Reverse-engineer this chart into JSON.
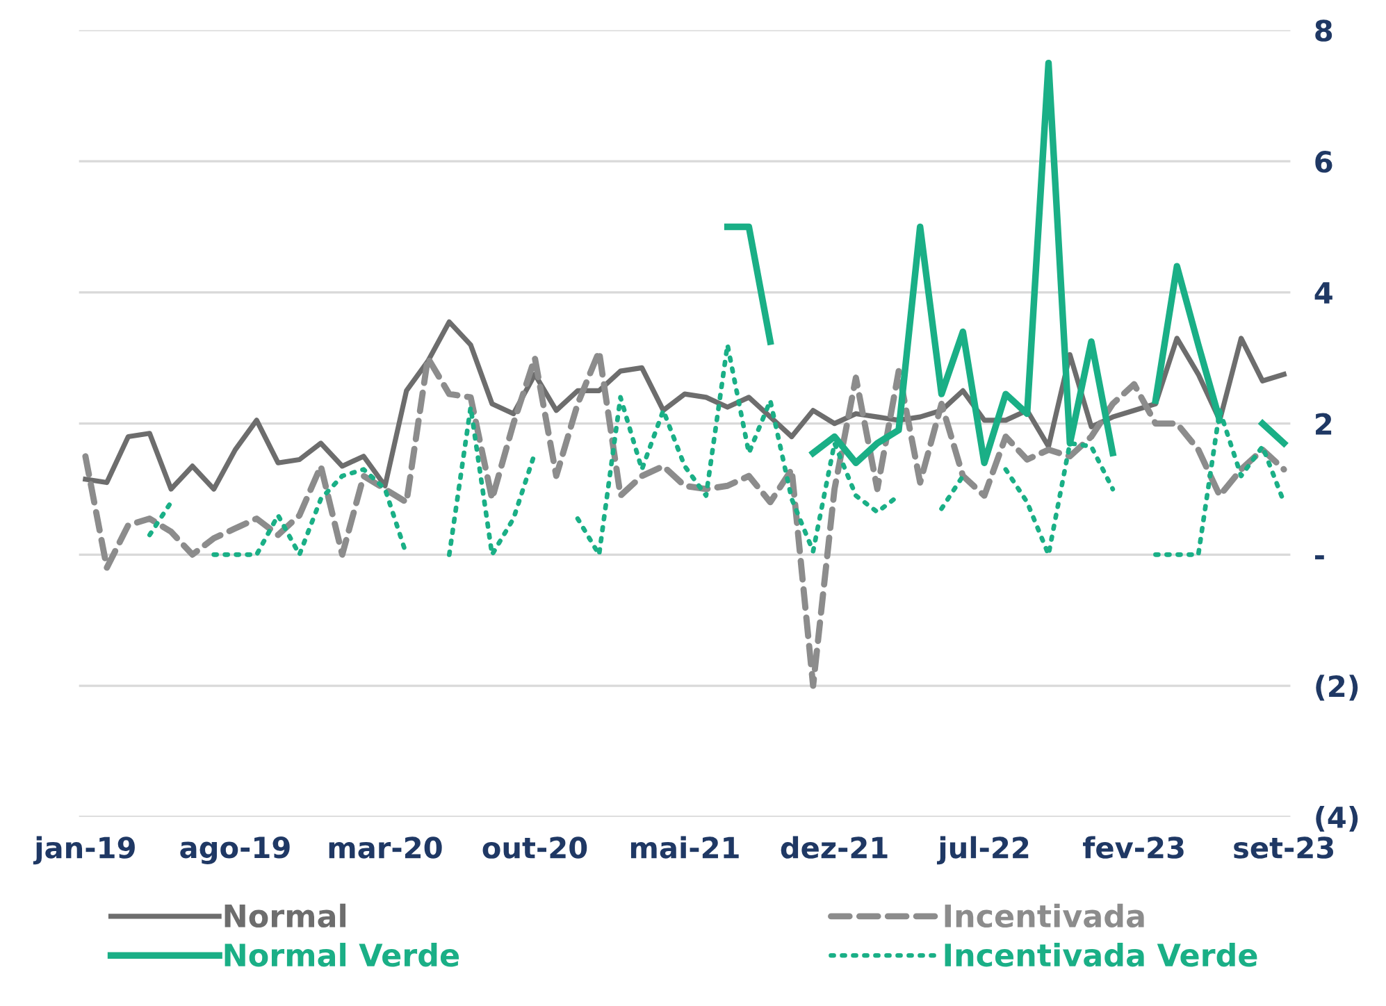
{
  "chart_data": {
    "type": "line",
    "categories": [
      "jan-19",
      null,
      null,
      null,
      null,
      null,
      null,
      "ago-19",
      null,
      null,
      null,
      null,
      null,
      null,
      "mar-20",
      null,
      null,
      null,
      null,
      null,
      null,
      "out-20",
      null,
      null,
      null,
      null,
      null,
      null,
      "mai-21",
      null,
      null,
      null,
      null,
      null,
      null,
      "dez-21",
      null,
      null,
      null,
      null,
      null,
      null,
      "jul-22",
      null,
      null,
      null,
      null,
      null,
      null,
      "fev-23",
      null,
      null,
      null,
      null,
      null,
      null,
      "set-23"
    ],
    "series": [
      {
        "name": "Normal",
        "color": "#6d6d6d",
        "line_style": "solid",
        "values": [
          1.15,
          1.1,
          1.8,
          1.85,
          1.0,
          1.35,
          1.0,
          1.6,
          2.05,
          1.4,
          1.45,
          1.7,
          1.35,
          1.5,
          1.05,
          2.5,
          2.95,
          3.55,
          3.2,
          2.3,
          2.15,
          2.75,
          2.2,
          2.5,
          2.5,
          2.8,
          2.85,
          2.2,
          2.45,
          2.4,
          2.25,
          2.4,
          2.1,
          1.8,
          2.2,
          2.0,
          2.15,
          2.1,
          2.05,
          2.1,
          2.2,
          2.5,
          2.05,
          2.05,
          2.2,
          1.65,
          3.05,
          1.95,
          2.1,
          2.2,
          2.3,
          3.3,
          2.75,
          2.05,
          3.3,
          2.65,
          2.75
        ]
      },
      {
        "name": "Incentivada",
        "color": "#8c8c8c",
        "line_style": "dashed",
        "values": [
          1.5,
          -0.2,
          0.45,
          0.55,
          0.35,
          0.0,
          0.25,
          0.4,
          0.55,
          0.3,
          0.6,
          1.35,
          0.0,
          1.2,
          1.0,
          0.8,
          3.0,
          2.45,
          2.4,
          0.85,
          2.0,
          3.0,
          1.2,
          2.3,
          3.1,
          0.9,
          1.2,
          1.35,
          1.05,
          1.0,
          1.05,
          1.2,
          0.8,
          1.3,
          -2.0,
          1.0,
          2.7,
          1.0,
          2.8,
          1.1,
          2.3,
          1.2,
          0.9,
          1.8,
          1.45,
          1.6,
          1.5,
          1.8,
          2.3,
          2.6,
          2.0,
          2.0,
          1.6,
          0.9,
          1.3,
          1.6,
          1.3
        ]
      },
      {
        "name": "Normal Verde",
        "color": "#1aaf86",
        "line_style": "solid",
        "values": [
          null,
          null,
          null,
          null,
          null,
          null,
          null,
          null,
          null,
          null,
          null,
          null,
          null,
          null,
          null,
          null,
          null,
          null,
          null,
          null,
          null,
          null,
          null,
          null,
          null,
          null,
          null,
          null,
          null,
          null,
          5.0,
          5.0,
          3.25,
          null,
          1.55,
          1.8,
          1.4,
          1.7,
          1.9,
          5.0,
          2.45,
          3.4,
          1.4,
          2.45,
          2.15,
          7.5,
          1.7,
          3.25,
          1.55,
          null,
          2.35,
          4.4,
          3.2,
          2.05,
          null,
          2.0,
          1.7
        ]
      },
      {
        "name": "Incentivada Verde",
        "color": "#1aaf86",
        "line_style": "dotted",
        "values": [
          null,
          null,
          null,
          0.3,
          0.8,
          null,
          0.0,
          0.0,
          0.0,
          0.6,
          0.0,
          0.85,
          1.2,
          1.3,
          1.0,
          0.0,
          null,
          0.0,
          2.25,
          0.0,
          0.55,
          1.55,
          null,
          0.55,
          0.0,
          2.4,
          1.3,
          2.2,
          1.35,
          0.9,
          3.2,
          1.55,
          2.35,
          0.85,
          0.05,
          1.7,
          0.9,
          0.65,
          0.9,
          null,
          0.7,
          1.2,
          null,
          1.3,
          0.8,
          0.0,
          1.7,
          1.65,
          1.0,
          null,
          0.0,
          0.0,
          0.0,
          2.2,
          1.2,
          1.65,
          0.8
        ]
      }
    ],
    "ylim": [
      -4,
      8
    ],
    "yticks": [
      {
        "value": 8,
        "label": "8"
      },
      {
        "value": 6,
        "label": "6"
      },
      {
        "value": 4,
        "label": "4"
      },
      {
        "value": 2,
        "label": "2"
      },
      {
        "value": 0,
        "label": "-"
      },
      {
        "value": -2,
        "label": "(2)"
      },
      {
        "value": -4,
        "label": "(4)"
      }
    ],
    "grid": "y",
    "legend": "bottom"
  }
}
